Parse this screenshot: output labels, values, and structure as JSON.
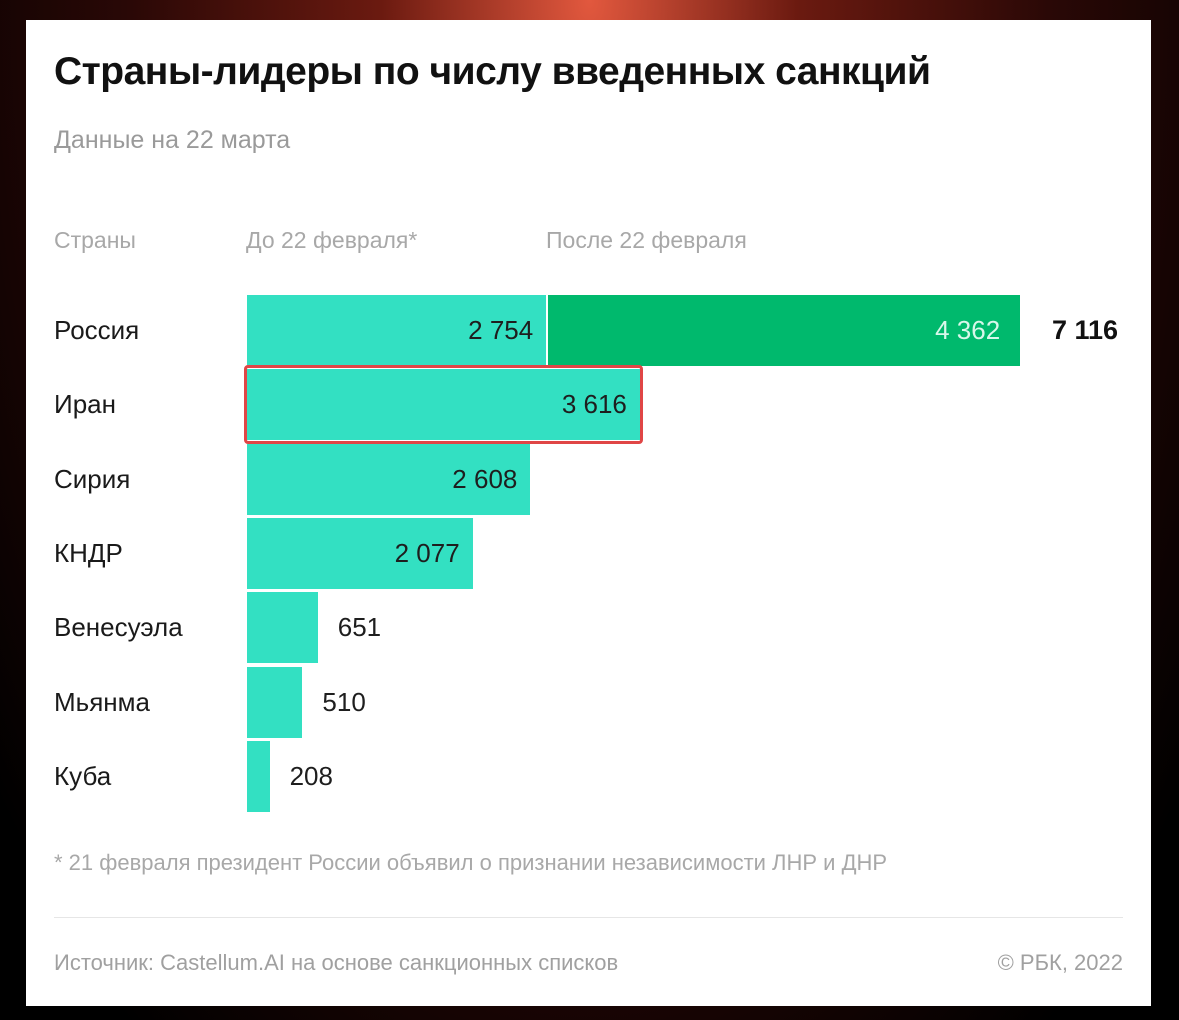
{
  "chart_data": {
    "type": "bar",
    "orientation": "horizontal",
    "stacked": true,
    "title": "Страны-лидеры по числу введенных санкций",
    "subtitle": "Данные на 22 марта",
    "column_headers": {
      "countries": "Страны",
      "before": "До 22 февраля*",
      "after": "После 22 февраля"
    },
    "categories": [
      "Россия",
      "Иран",
      "Сирия",
      "КНДР",
      "Венесуэла",
      "Мьянма",
      "Куба"
    ],
    "series": [
      {
        "name": "До 22 февраля*",
        "values": [
          2754,
          3616,
          2608,
          2077,
          651,
          510,
          208
        ],
        "labels": [
          "2 754",
          "3 616",
          "2 608",
          "2 077",
          "651",
          "510",
          "208"
        ],
        "color": "#33e0c2"
      },
      {
        "name": "После 22 февраля",
        "values": [
          4362,
          null,
          null,
          null,
          null,
          null,
          null
        ],
        "labels": [
          "4 362",
          null,
          null,
          null,
          null,
          null,
          null
        ],
        "color": "#00b96d"
      }
    ],
    "totals": [
      "7 116",
      null,
      null,
      null,
      null,
      null,
      null
    ],
    "highlighted_category": "Иран",
    "highlight_color": "#e04646",
    "footnote": "* 21 февраля президент России объявил о признании независимости ЛНР и ДНР",
    "source": "Источник: Castellum.AI на основе санкционных списков",
    "copyright": "© РБК, 2022"
  }
}
